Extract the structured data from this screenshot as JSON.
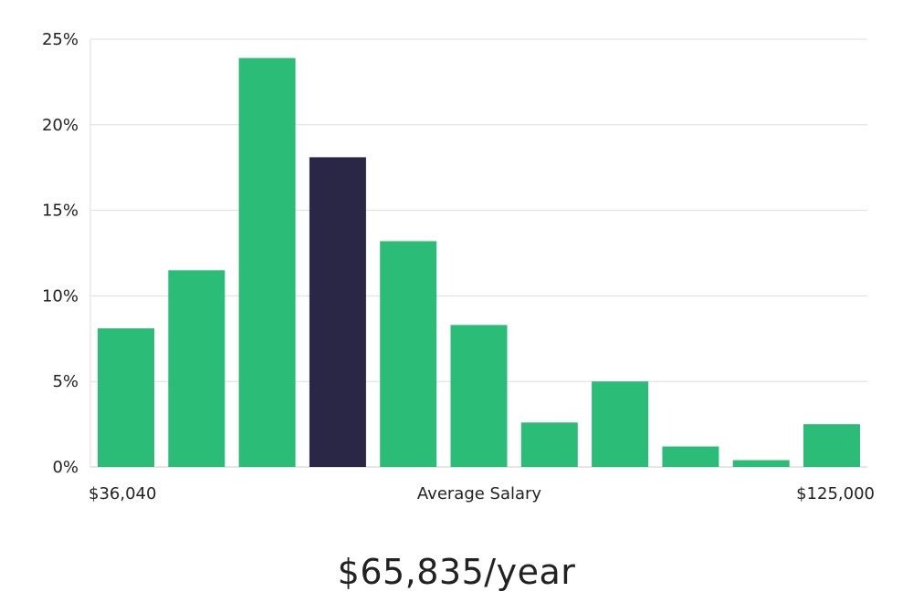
{
  "chart_data": {
    "type": "bar",
    "categories": [
      "1",
      "2",
      "3",
      "4",
      "5",
      "6",
      "7",
      "8",
      "9",
      "10",
      "11"
    ],
    "values": [
      8.1,
      11.5,
      23.9,
      18.1,
      13.2,
      8.3,
      2.6,
      5.0,
      1.2,
      0.4,
      2.5
    ],
    "highlight_index": 3,
    "ylim": [
      0,
      25
    ],
    "yticks": [
      0,
      5,
      10,
      15,
      20,
      25
    ],
    "ytick_labels": [
      "0%",
      "5%",
      "10%",
      "15%",
      "20%",
      "25%"
    ],
    "x_min_label": "$36,040",
    "x_center_label": "Average Salary",
    "x_max_label": "$125,000",
    "grid": true,
    "colors": {
      "bar": "#2bbd77",
      "highlight": "#2a2645",
      "grid": "#dddddd"
    }
  },
  "summary": {
    "value_text": "$65,835/year"
  }
}
